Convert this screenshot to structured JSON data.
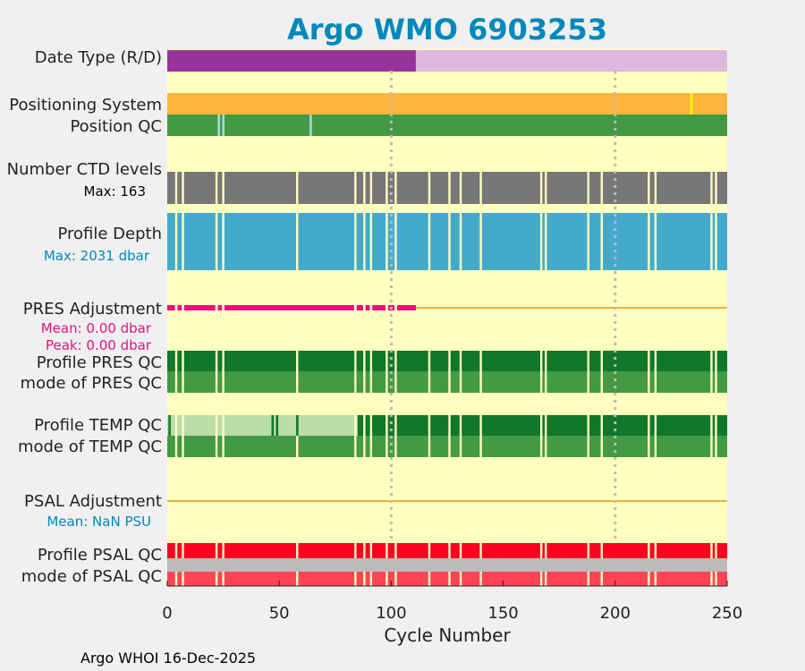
{
  "chart_data": {
    "type": "timeline",
    "title": "Argo WMO 6903253",
    "xlabel": "Cycle Number",
    "xlim": [
      0,
      250
    ],
    "x_ticks": [
      0,
      50,
      100,
      150,
      200,
      250
    ],
    "grid_cycles": [
      100,
      200
    ],
    "missing_cycles": [
      4,
      7,
      22,
      25,
      58,
      84,
      88,
      91,
      98,
      102,
      117,
      126,
      131,
      140,
      167,
      169,
      188,
      194,
      215,
      218,
      243,
      245
    ],
    "rows": {
      "date_type": {
        "label": "Date Type (R/D)",
        "segments": [
          {
            "from": 0,
            "to": 111,
            "value": "R",
            "color": "#993399"
          },
          {
            "from": 111,
            "to": 250,
            "value": "D",
            "color": "#ddb8dd"
          }
        ]
      },
      "positioning_system": {
        "label": "Positioning System",
        "color": "#ffb43c",
        "markers": [
          {
            "cycle": 234,
            "color": "#ffff00"
          }
        ]
      },
      "position_qc": {
        "label": "Position QC",
        "color": "#449944",
        "markers": [
          {
            "cycle": 23,
            "color": "#aad4dd"
          },
          {
            "cycle": 25,
            "color": "#aad4dd"
          },
          {
            "cycle": 64,
            "color": "#aad4dd"
          }
        ]
      },
      "ctd_levels": {
        "label": "Number CTD levels",
        "sublabel": "Max: 163",
        "color": "#777777",
        "max": 163
      },
      "profile_depth": {
        "label": "Profile Depth",
        "sublabel": "Max: 2031 dbar",
        "color": "#44aacc",
        "max": 2031
      },
      "pres_adjustment": {
        "label": "PRES Adjustment",
        "mean_label": "Mean: 0.00 dbar",
        "peak_label": "Peak: 0.00 dbar",
        "mean": 0.0,
        "peak": 0.0,
        "marker_color": "#e8127c",
        "line_color": "#f2b03a",
        "marker_until": 111
      },
      "profile_pres_qc": {
        "label": "Profile PRES QC",
        "color": "#11772a"
      },
      "mode_pres_qc": {
        "label": "mode of PRES QC",
        "color": "#449944"
      },
      "profile_temp_qc": {
        "label": "Profile TEMP QC",
        "segments": [
          {
            "from": 0,
            "to": 85,
            "value": "B",
            "color": "#bbddaa"
          },
          {
            "from": 85,
            "to": 250,
            "value": "A",
            "color": "#11772a"
          }
        ],
        "markers": [
          {
            "cycle": 1,
            "color": "#11772a"
          },
          {
            "cycle": 47,
            "color": "#11772a"
          },
          {
            "cycle": 49,
            "color": "#11772a"
          },
          {
            "cycle": 58,
            "color": "#11772a"
          }
        ]
      },
      "mode_temp_qc": {
        "label": "mode of TEMP QC",
        "color": "#449944"
      },
      "psal_adjustment": {
        "label": "PSAL Adjustment",
        "mean_label": "Mean:  NaN PSU",
        "line_color": "#f2b03a"
      },
      "profile_psal_qc": {
        "label": "Profile PSAL QC",
        "color": "#ff0022"
      },
      "mode_psal_qc": {
        "label": "mode of PSAL QC",
        "color": "#ff4455",
        "band_color": "#bbbbbb"
      }
    }
  },
  "footer": "Argo WHOI 16-Dec-2025",
  "colors": {
    "plot_bg": "#ffffc0",
    "figure_bg": "#f0f0f0",
    "title": "#0088bb",
    "ctd_sublabel": "#000000",
    "depth_sublabel": "#0088bb",
    "pres_labels": "#e8127c",
    "psal_sublabel": "#0088bb",
    "grid": "#bbbbbb",
    "gap": "#ffffc0"
  }
}
